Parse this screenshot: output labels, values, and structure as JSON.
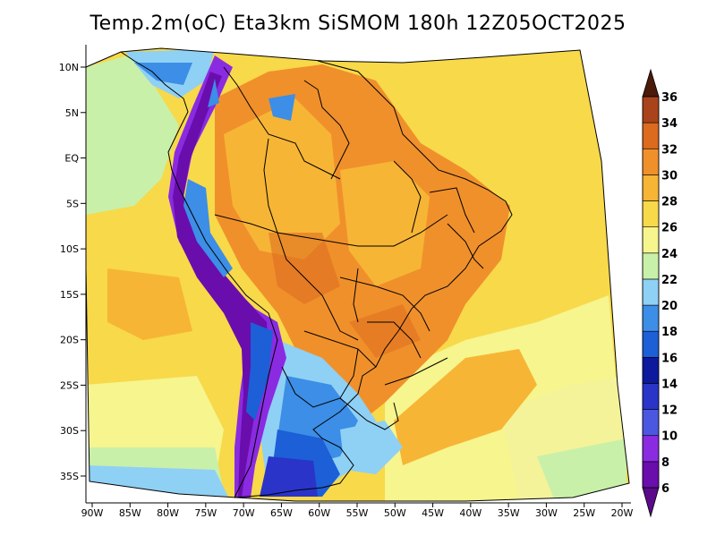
{
  "title": "Temp.2m(oC) Eta3km SiSMOM 180h 12Z05OCT2025",
  "map": {
    "lat_labels": [
      "10N",
      "5N",
      "EQ",
      "5S",
      "10S",
      "15S",
      "20S",
      "25S",
      "30S",
      "35S"
    ],
    "lon_labels": [
      "90W",
      "85W",
      "80W",
      "75W",
      "70W",
      "65W",
      "60W",
      "55W",
      "50W",
      "45W",
      "40W",
      "35W",
      "30W",
      "25W",
      "20W"
    ],
    "lat_values": [
      10,
      5,
      0,
      -5,
      -10,
      -15,
      -20,
      -25,
      -30,
      -35
    ],
    "lon_values": [
      -90,
      -85,
      -80,
      -75,
      -70,
      -65,
      -60,
      -55,
      -50,
      -45,
      -40,
      -35,
      -30,
      -25,
      -20
    ],
    "field": "2 m air temperature",
    "units": "oC"
  },
  "colorbar": {
    "labels": [
      "6",
      "8",
      "10",
      "12",
      "14",
      "16",
      "18",
      "20",
      "22",
      "24",
      "26",
      "28",
      "30",
      "32",
      "34",
      "36"
    ],
    "colors": [
      "#6a0dad",
      "#8a2be2",
      "#4b57e0",
      "#2a34c9",
      "#0d1a9e",
      "#1c5fd6",
      "#3c8ee6",
      "#8fd0f5",
      "#c9f0a8",
      "#f6f58e",
      "#f7d94a",
      "#f7b535",
      "#f0902b",
      "#dc6a1f",
      "#a9431b",
      "#6b2212"
    ],
    "tip_top_color": "#4a1a0a",
    "tip_bottom_color": "#5a0a8a"
  }
}
